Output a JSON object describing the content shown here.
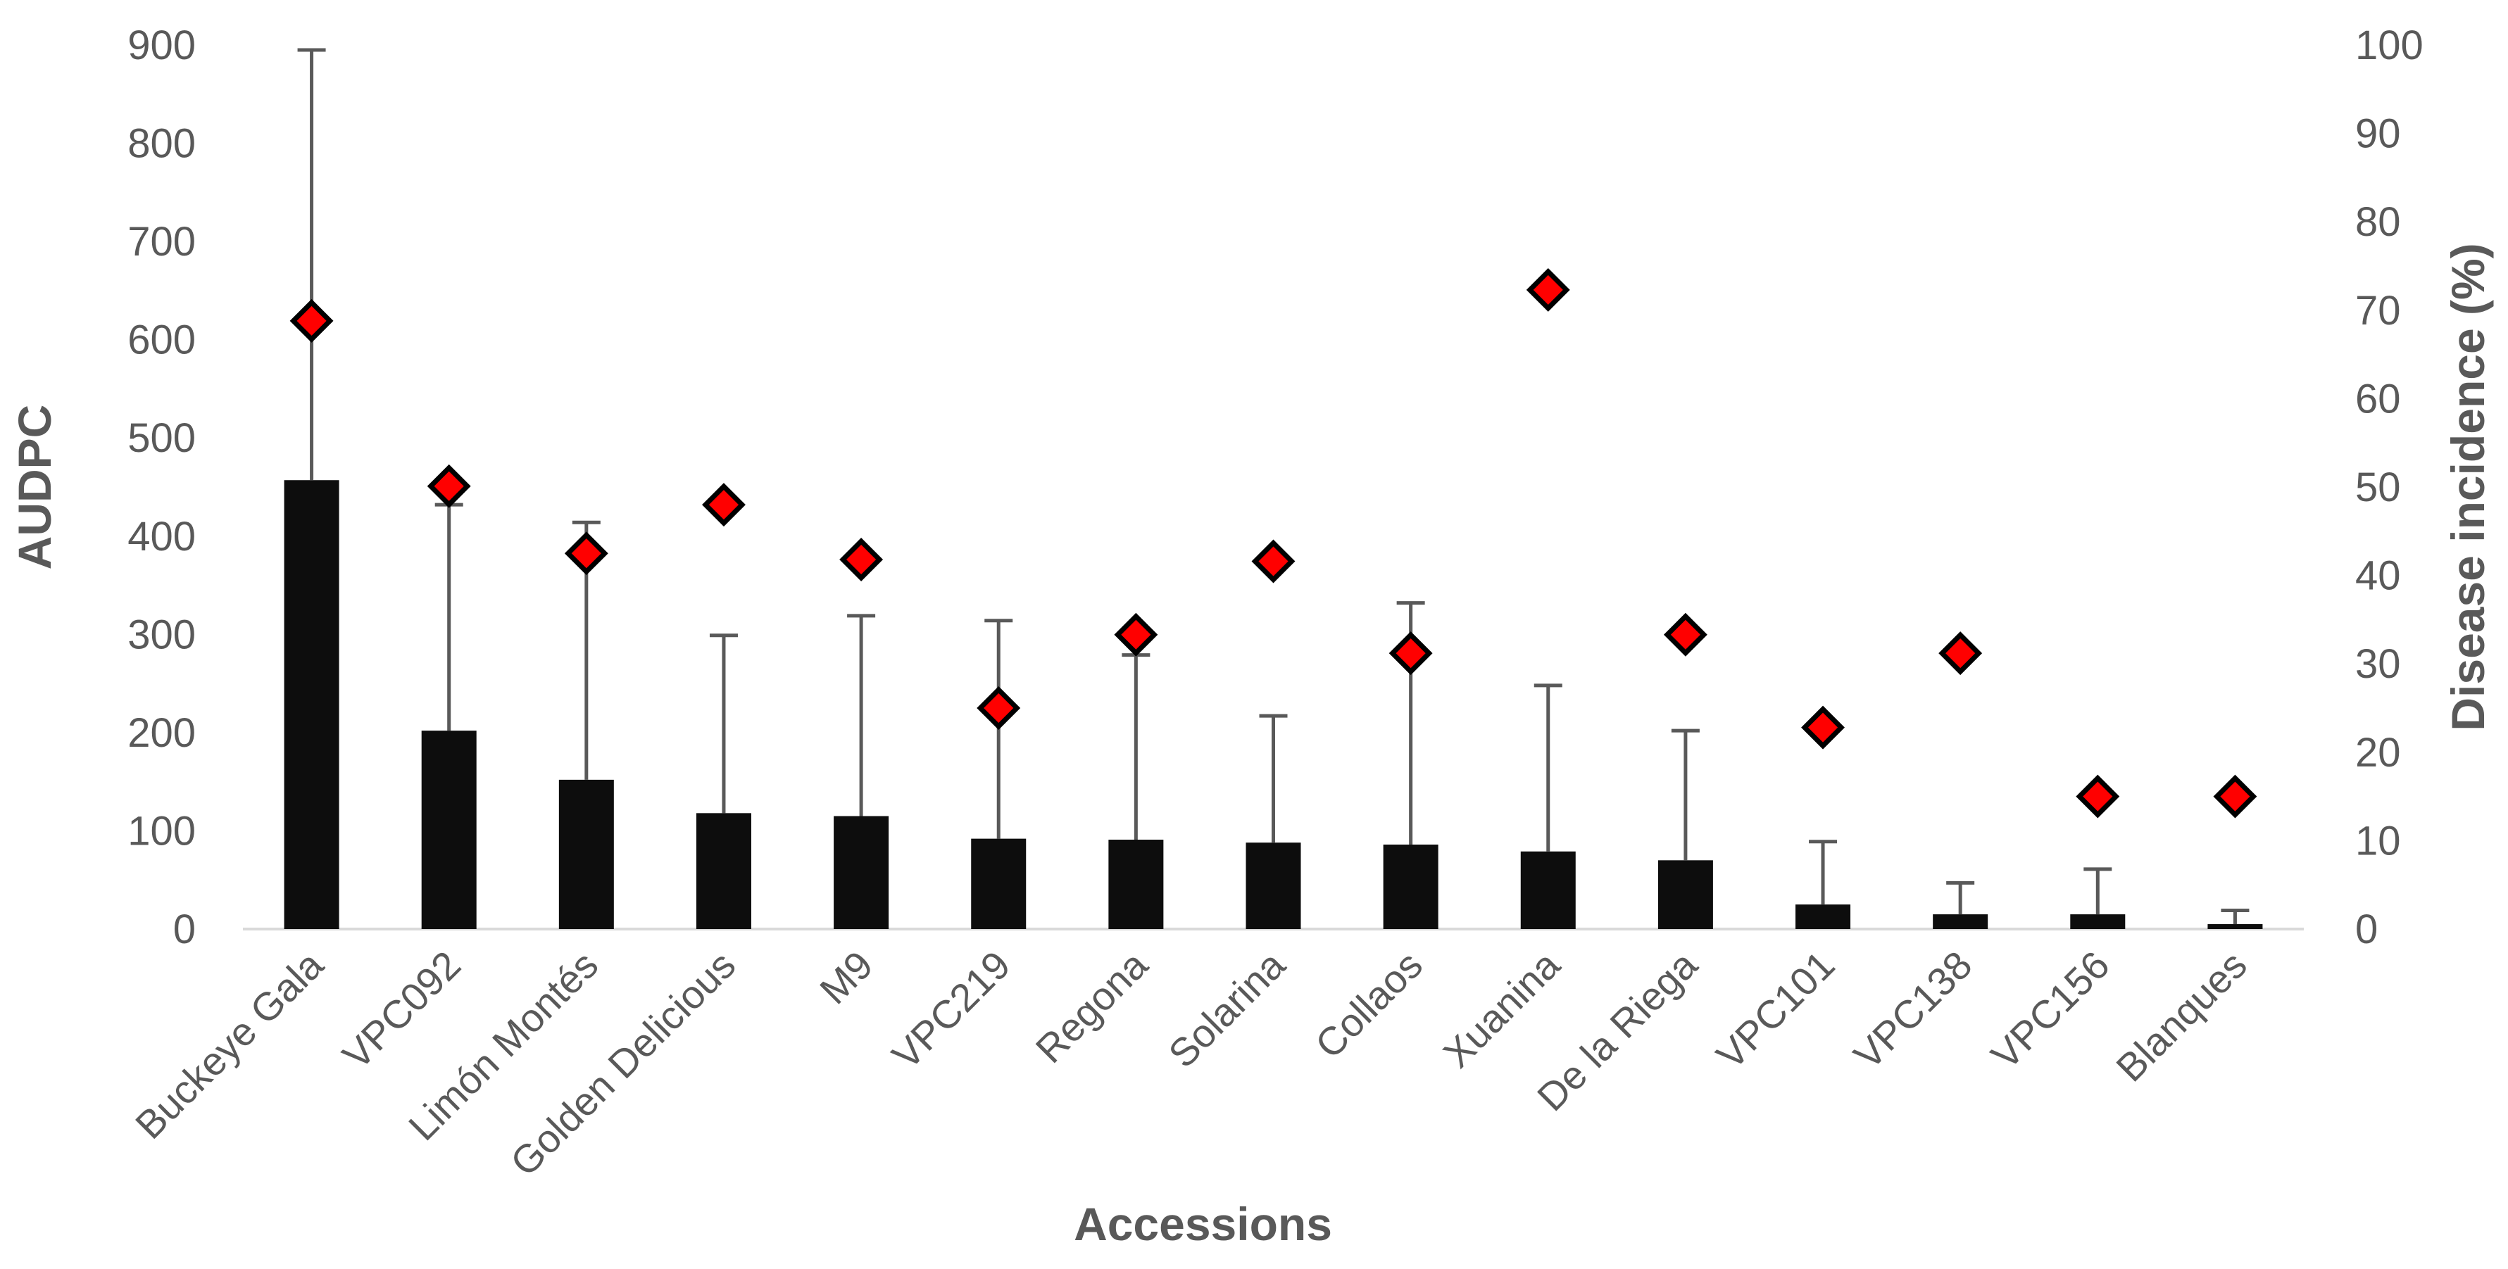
{
  "chart_data": {
    "type": "bar",
    "xlabel": "Accessions",
    "ylabel": "AUDPC",
    "y2label": "Disease incidence (%)",
    "ylim": [
      0,
      900
    ],
    "y2lim": [
      0,
      100
    ],
    "yticks": [
      "0",
      "100",
      "200",
      "300",
      "400",
      "500",
      "600",
      "700",
      "800",
      "900"
    ],
    "y2ticks": [
      "0",
      "10",
      "20",
      "30",
      "40",
      "50",
      "60",
      "70",
      "80",
      "90",
      "100"
    ],
    "grid": false,
    "legend": "none",
    "categories": [
      "Buckeye Gala",
      "VPC092",
      "Limón Montés",
      "Golden Delicious",
      "M9",
      "VPC219",
      "Regona",
      "Solarina",
      "Collaos",
      "Xuanina",
      "De la Riega",
      "VPC101",
      "VPC138",
      "VPC156",
      "Blanques"
    ],
    "series": [
      {
        "type": "bar",
        "axis": "left",
        "color": "#0d0d0d",
        "values": [
          457,
          202,
          152,
          118,
          115,
          92,
          91,
          88,
          86,
          79,
          70,
          25,
          15,
          15,
          5
        ],
        "error_upper": [
          895,
          432,
          414,
          299,
          319,
          314,
          279,
          217,
          332,
          248,
          202,
          89,
          47,
          61,
          19
        ]
      },
      {
        "type": "scatter",
        "axis": "right",
        "marker": "diamond",
        "color": "#ff0000",
        "values": [
          68.8,
          50.1,
          42.5,
          48.0,
          41.8,
          25.0,
          33.3,
          41.6,
          31.2,
          72.3,
          33.3,
          22.8,
          31.2,
          15.0,
          15.0
        ]
      }
    ]
  }
}
